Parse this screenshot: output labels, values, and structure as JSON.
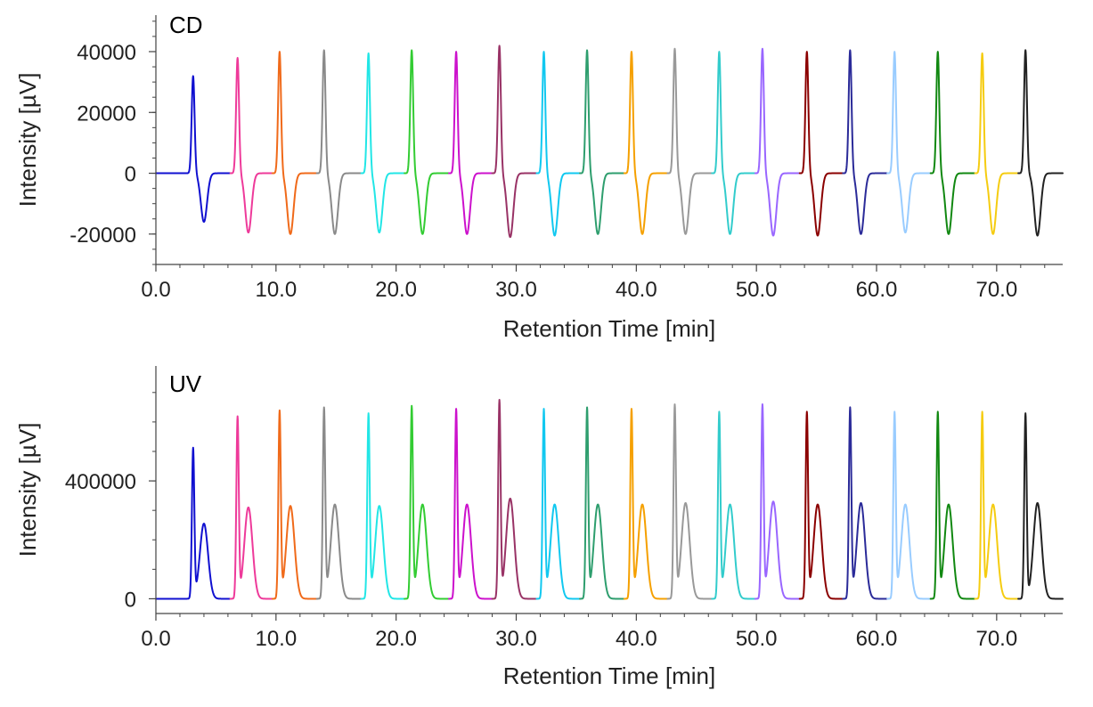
{
  "chart_data": [
    {
      "type": "line",
      "panel_label": "CD",
      "xlabel": "Retention Time [min]",
      "ylabel": "Intensity [µV]",
      "xlim": [
        0,
        75.5
      ],
      "ylim": [
        -30000,
        52000
      ],
      "xticks": [
        0,
        10,
        20,
        30,
        40,
        50,
        60,
        70
      ],
      "xtick_labels": [
        "0.0",
        "10.0",
        "20.0",
        "30.0",
        "40.0",
        "50.0",
        "60.0",
        "70.0"
      ],
      "yticks": [
        -20000,
        0,
        20000,
        40000
      ],
      "ytick_labels": [
        "-20000",
        "0",
        "20000",
        "40000"
      ],
      "grid": false,
      "peaks": [
        {
          "color": "#1010d0",
          "t1": 3.1,
          "h1": 32000,
          "t2": 4.0,
          "h2": -16000
        },
        {
          "color": "#ee3a9a",
          "t1": 6.8,
          "h1": 38000,
          "t2": 7.7,
          "h2": -19500
        },
        {
          "color": "#f06a1a",
          "t1": 10.3,
          "h1": 40000,
          "t2": 11.2,
          "h2": -20000
        },
        {
          "color": "#8a8a8a",
          "t1": 14.0,
          "h1": 40500,
          "t2": 14.9,
          "h2": -20000
        },
        {
          "color": "#22e6e6",
          "t1": 17.7,
          "h1": 39500,
          "t2": 18.6,
          "h2": -19500
        },
        {
          "color": "#33cc33",
          "t1": 21.3,
          "h1": 40500,
          "t2": 22.2,
          "h2": -20000
        },
        {
          "color": "#cc11cc",
          "t1": 25.0,
          "h1": 40000,
          "t2": 25.9,
          "h2": -20000
        },
        {
          "color": "#993366",
          "t1": 28.6,
          "h1": 42000,
          "t2": 29.5,
          "h2": -21000
        },
        {
          "color": "#11c8f0",
          "t1": 32.3,
          "h1": 40000,
          "t2": 33.2,
          "h2": -20500
        },
        {
          "color": "#2e9e6e",
          "t1": 35.9,
          "h1": 40500,
          "t2": 36.8,
          "h2": -20000
        },
        {
          "color": "#f5a000",
          "t1": 39.6,
          "h1": 40000,
          "t2": 40.5,
          "h2": -20000
        },
        {
          "color": "#999999",
          "t1": 43.2,
          "h1": 41000,
          "t2": 44.1,
          "h2": -20000
        },
        {
          "color": "#33cccc",
          "t1": 46.9,
          "h1": 40000,
          "t2": 47.8,
          "h2": -20000
        },
        {
          "color": "#9966ff",
          "t1": 50.5,
          "h1": 41000,
          "t2": 51.4,
          "h2": -20500
        },
        {
          "color": "#8b0000",
          "t1": 54.2,
          "h1": 40000,
          "t2": 55.1,
          "h2": -20500
        },
        {
          "color": "#2b2b99",
          "t1": 57.8,
          "h1": 40500,
          "t2": 58.7,
          "h2": -20000
        },
        {
          "color": "#99ccff",
          "t1": 61.5,
          "h1": 40000,
          "t2": 62.4,
          "h2": -19500
        },
        {
          "color": "#118811",
          "t1": 65.1,
          "h1": 40000,
          "t2": 66.0,
          "h2": -20000
        },
        {
          "color": "#f5cc11",
          "t1": 68.8,
          "h1": 39500,
          "t2": 69.7,
          "h2": -20000
        },
        {
          "color": "#222222",
          "t1": 72.4,
          "h1": 40500,
          "t2": 73.4,
          "h2": -20500
        }
      ]
    },
    {
      "type": "line",
      "panel_label": "UV",
      "xlabel": "Retention Time [min]",
      "ylabel": "Intensity [µV]",
      "xlim": [
        0,
        75.5
      ],
      "ylim": [
        -50000,
        790000
      ],
      "xticks": [
        0,
        10,
        20,
        30,
        40,
        50,
        60,
        70
      ],
      "xtick_labels": [
        "0.0",
        "10.0",
        "20.0",
        "30.0",
        "40.0",
        "50.0",
        "60.0",
        "70.0"
      ],
      "yticks": [
        0,
        400000
      ],
      "ytick_labels": [
        "0",
        "400000"
      ],
      "grid": false,
      "peaks": [
        {
          "color": "#1010d0",
          "t1": 3.1,
          "h1": 505000,
          "t2": 4.0,
          "h2": 255000
        },
        {
          "color": "#ee3a9a",
          "t1": 6.8,
          "h1": 610000,
          "t2": 7.7,
          "h2": 310000
        },
        {
          "color": "#f06a1a",
          "t1": 10.3,
          "h1": 630000,
          "t2": 11.2,
          "h2": 315000
        },
        {
          "color": "#8a8a8a",
          "t1": 14.0,
          "h1": 640000,
          "t2": 14.9,
          "h2": 320000
        },
        {
          "color": "#22e6e6",
          "t1": 17.7,
          "h1": 620000,
          "t2": 18.6,
          "h2": 315000
        },
        {
          "color": "#33cc33",
          "t1": 21.3,
          "h1": 645000,
          "t2": 22.2,
          "h2": 320000
        },
        {
          "color": "#cc11cc",
          "t1": 25.0,
          "h1": 635000,
          "t2": 25.9,
          "h2": 320000
        },
        {
          "color": "#993366",
          "t1": 28.6,
          "h1": 665000,
          "t2": 29.5,
          "h2": 340000
        },
        {
          "color": "#11c8f0",
          "t1": 32.3,
          "h1": 635000,
          "t2": 33.2,
          "h2": 320000
        },
        {
          "color": "#2e9e6e",
          "t1": 35.9,
          "h1": 640000,
          "t2": 36.8,
          "h2": 320000
        },
        {
          "color": "#f5a000",
          "t1": 39.6,
          "h1": 635000,
          "t2": 40.5,
          "h2": 320000
        },
        {
          "color": "#999999",
          "t1": 43.2,
          "h1": 650000,
          "t2": 44.1,
          "h2": 325000
        },
        {
          "color": "#33cccc",
          "t1": 46.9,
          "h1": 625000,
          "t2": 47.8,
          "h2": 320000
        },
        {
          "color": "#9966ff",
          "t1": 50.5,
          "h1": 650000,
          "t2": 51.4,
          "h2": 330000
        },
        {
          "color": "#8b0000",
          "t1": 54.2,
          "h1": 625000,
          "t2": 55.1,
          "h2": 320000
        },
        {
          "color": "#2b2b99",
          "t1": 57.8,
          "h1": 640000,
          "t2": 58.7,
          "h2": 325000
        },
        {
          "color": "#99ccff",
          "t1": 61.5,
          "h1": 625000,
          "t2": 62.4,
          "h2": 320000
        },
        {
          "color": "#118811",
          "t1": 65.1,
          "h1": 625000,
          "t2": 66.0,
          "h2": 320000
        },
        {
          "color": "#f5cc11",
          "t1": 68.8,
          "h1": 625000,
          "t2": 69.7,
          "h2": 320000
        },
        {
          "color": "#222222",
          "t1": 72.4,
          "h1": 625000,
          "t2": 73.4,
          "h2": 325000
        }
      ]
    }
  ]
}
